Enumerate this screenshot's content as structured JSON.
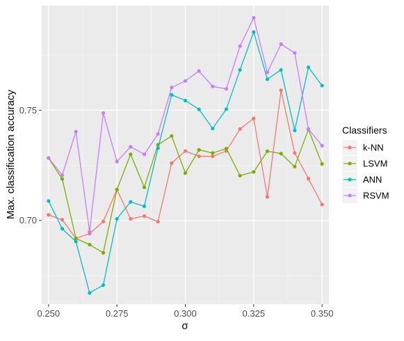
{
  "chart_data": {
    "type": "line",
    "title": "",
    "xlabel": "σ",
    "ylabel": "Max. classification accuracy",
    "xlim": [
      0.2475,
      0.3525
    ],
    "ylim": [
      0.662,
      0.7975
    ],
    "x_ticks": [
      "0.250",
      "0.275",
      "0.300",
      "0.325",
      "0.350"
    ],
    "x_tick_values": [
      0.25,
      0.275,
      0.3,
      0.325,
      0.35
    ],
    "y_ticks": [
      "0.70",
      "0.75"
    ],
    "y_tick_values": [
      0.7,
      0.75
    ],
    "grid": true,
    "legend": {
      "title": "Classifiers",
      "position": "right"
    },
    "x": [
      0.25,
      0.255,
      0.26,
      0.265,
      0.27,
      0.275,
      0.28,
      0.285,
      0.29,
      0.295,
      0.3,
      0.305,
      0.31,
      0.315,
      0.32,
      0.325,
      0.33,
      0.335,
      0.34,
      0.345,
      0.35
    ],
    "series": [
      {
        "name": "k-NN",
        "color": "#F8766D",
        "values": [
          0.7025,
          0.7003,
          0.6918,
          0.694,
          0.6995,
          0.714,
          0.7007,
          0.702,
          0.6994,
          0.726,
          0.7315,
          0.7291,
          0.7291,
          0.7315,
          0.7415,
          0.7463,
          0.7107,
          0.759,
          0.7306,
          0.719,
          0.7072
        ]
      },
      {
        "name": "LSVM",
        "color": "#7CAE00",
        "values": [
          0.7283,
          0.7188,
          0.6918,
          0.689,
          0.6853,
          0.714,
          0.73,
          0.715,
          0.7343,
          0.7383,
          0.7215,
          0.732,
          0.7306,
          0.7326,
          0.7203,
          0.722,
          0.7314,
          0.7303,
          0.7244,
          0.7413,
          0.7256
        ]
      },
      {
        "name": "ANN",
        "color": "#00BFC4",
        "values": [
          0.7088,
          0.6962,
          0.6904,
          0.6671,
          0.6706,
          0.7007,
          0.7084,
          0.7064,
          0.7328,
          0.757,
          0.7544,
          0.7504,
          0.7417,
          0.7505,
          0.7683,
          0.7855,
          0.7641,
          0.7683,
          0.7408,
          0.7695,
          0.7612
        ]
      },
      {
        "name": "RSVM",
        "color": "#C77CFF",
        "values": [
          0.7283,
          0.7205,
          0.7403,
          0.6949,
          0.7487,
          0.7267,
          0.7334,
          0.73,
          0.7392,
          0.7603,
          0.7633,
          0.7678,
          0.7608,
          0.7597,
          0.7791,
          0.792,
          0.7672,
          0.78,
          0.776,
          0.7415,
          0.7339
        ]
      }
    ]
  }
}
